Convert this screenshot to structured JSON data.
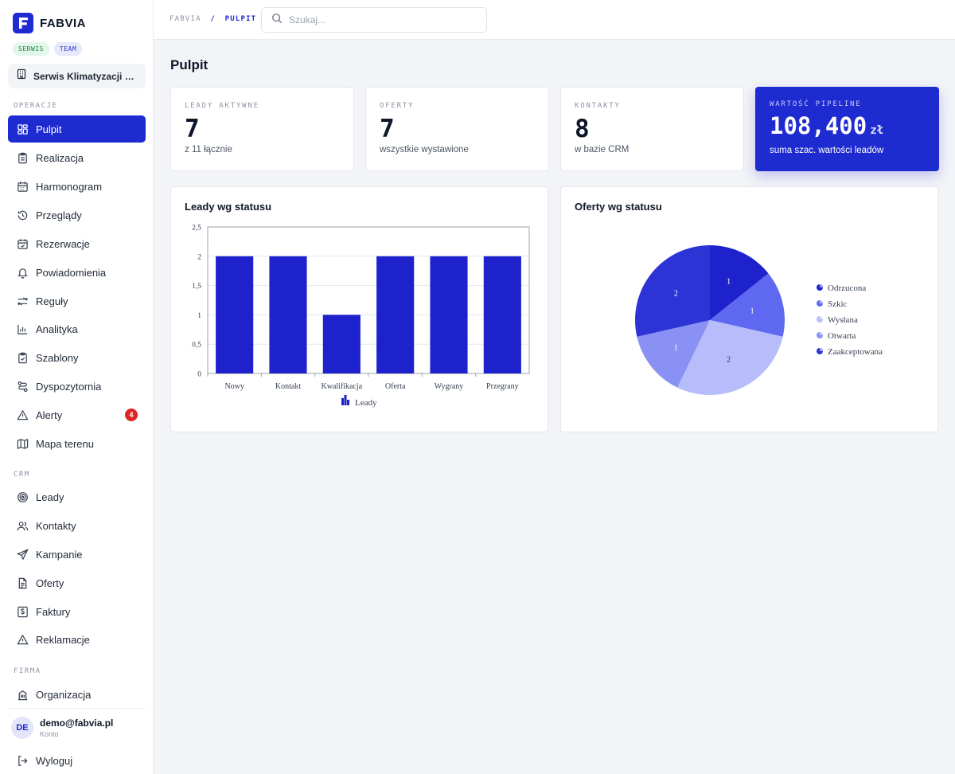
{
  "brand": {
    "name": "FABVIA"
  },
  "chips": [
    "SERWIS",
    "TEAM"
  ],
  "org": {
    "label": "Serwis Klimatyzacji KLI..."
  },
  "sidebar": {
    "sections": {
      "operacje": "OPERACJE",
      "crm": "CRM",
      "firma": "FIRMA"
    },
    "items": [
      {
        "label": "Pulpit",
        "icon": "dashboard-icon",
        "active": true
      },
      {
        "label": "Realizacja",
        "icon": "clipboard-icon"
      },
      {
        "label": "Harmonogram",
        "icon": "calendar-icon"
      },
      {
        "label": "Przeglądy",
        "icon": "history-icon"
      },
      {
        "label": "Rezerwacje",
        "icon": "calendar-check-icon"
      },
      {
        "label": "Powiadomienia",
        "icon": "bell-icon"
      },
      {
        "label": "Reguły",
        "icon": "rules-icon"
      },
      {
        "label": "Analityka",
        "icon": "bar-chart-icon"
      },
      {
        "label": "Szablony",
        "icon": "clipboard-check-icon"
      },
      {
        "label": "Dyspozytornia",
        "icon": "route-icon"
      },
      {
        "label": "Alerty",
        "icon": "warning-icon",
        "badge": "4"
      },
      {
        "label": "Mapa terenu",
        "icon": "map-icon"
      },
      {
        "label": "Leady",
        "icon": "target-icon"
      },
      {
        "label": "Kontakty",
        "icon": "users-icon"
      },
      {
        "label": "Kampanie",
        "icon": "send-icon"
      },
      {
        "label": "Oferty",
        "icon": "document-icon"
      },
      {
        "label": "Faktury",
        "icon": "invoice-icon"
      },
      {
        "label": "Reklamacje",
        "icon": "warning-icon"
      },
      {
        "label": "Organizacja",
        "icon": "building-icon"
      }
    ]
  },
  "user": {
    "initials": "DE",
    "email": "demo@fabvia.pl",
    "sub": "Konto"
  },
  "logout": {
    "label": "Wyloguj"
  },
  "breadcrumb": {
    "root": "FABVIA",
    "separator": "/",
    "current": "PULPIT"
  },
  "search": {
    "placeholder": "Szukaj..."
  },
  "page": {
    "title": "Pulpit"
  },
  "stats": [
    {
      "label": "LEADY AKTYWNE",
      "value": "7",
      "sub": "z 11 łącznie"
    },
    {
      "label": "OFERTY",
      "value": "7",
      "sub": "wszystkie wystawione"
    },
    {
      "label": "KONTAKTY",
      "value": "8",
      "sub": "w bazie CRM"
    },
    {
      "label": "WARTOŚĆ PIPELINE",
      "value": "108,400",
      "unit": "zł",
      "sub": "suma szac. wartości leadów"
    }
  ],
  "panels": {
    "leads_title": "Leady wg statusu",
    "offers_title": "Oferty wg statusu"
  },
  "colors": {
    "accent": "#1e2bd0",
    "badge": "#dc2626"
  },
  "chart_data": [
    {
      "type": "bar",
      "categories": [
        "Nowy",
        "Kontakt",
        "Kwalifikacja",
        "Oferta",
        "Wygrany",
        "Przegrany"
      ],
      "series": [
        {
          "name": "Leady",
          "values": [
            2,
            2,
            1,
            2,
            2,
            2
          ],
          "color": "#1e22cc"
        }
      ],
      "yticks": [
        "0",
        "0,5",
        "1",
        "1,5",
        "2",
        "2,5"
      ],
      "ylim": [
        0,
        2.5
      ],
      "grid": true,
      "legend": "bottom"
    },
    {
      "type": "pie",
      "slices": [
        {
          "label": "Odrzucona",
          "value": 1,
          "color": "#1e22cc"
        },
        {
          "label": "Szkic",
          "value": 1,
          "color": "#5f68f0"
        },
        {
          "label": "Wysłana",
          "value": 2,
          "color": "#b7bdfb"
        },
        {
          "label": "Otwarta",
          "value": 1,
          "color": "#8a91f4"
        },
        {
          "label": "Zaakceptowana",
          "value": 2,
          "color": "#2c34d6"
        }
      ],
      "legend": "right"
    }
  ]
}
